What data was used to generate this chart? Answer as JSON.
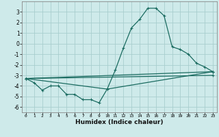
{
  "xlabel": "Humidex (Indice chaleur)",
  "bg_color": "#ceeaea",
  "grid_color": "#a8cece",
  "line_color": "#1a6b60",
  "xlim": [
    -0.5,
    23.5
  ],
  "ylim": [
    -6.5,
    4.0
  ],
  "xticks": [
    0,
    1,
    2,
    3,
    4,
    5,
    6,
    7,
    8,
    9,
    10,
    11,
    12,
    13,
    14,
    15,
    16,
    17,
    18,
    19,
    20,
    21,
    22,
    23
  ],
  "yticks": [
    -6,
    -5,
    -4,
    -3,
    -2,
    -1,
    0,
    1,
    2,
    3
  ],
  "lines": [
    {
      "x": [
        0,
        1,
        2,
        3,
        4,
        5,
        6,
        7,
        8,
        9,
        10,
        11,
        12,
        13,
        14,
        15,
        16,
        17,
        18,
        19,
        20,
        21,
        22,
        23
      ],
      "y": [
        -3.3,
        -3.7,
        -4.4,
        -4.0,
        -4.0,
        -4.8,
        -4.8,
        -5.3,
        -5.3,
        -5.6,
        -4.3,
        -2.5,
        -0.4,
        1.5,
        2.3,
        3.35,
        3.35,
        2.65,
        -0.3,
        -0.55,
        -1.0,
        -1.85,
        -2.2,
        -2.65
      ]
    },
    {
      "x": [
        0,
        23
      ],
      "y": [
        -3.3,
        -2.65
      ]
    },
    {
      "x": [
        0,
        23
      ],
      "y": [
        -3.3,
        -3.0
      ]
    },
    {
      "x": [
        0,
        10,
        23
      ],
      "y": [
        -3.3,
        -4.3,
        -2.65
      ]
    }
  ]
}
